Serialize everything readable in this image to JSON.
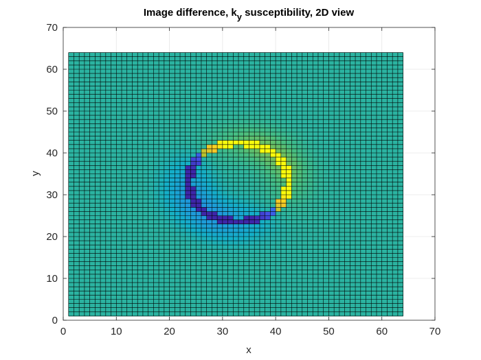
{
  "chart_data": {
    "type": "heatmap",
    "title": {
      "prefix": "Image difference, k",
      "subscript": "y",
      "suffix": " susceptibility, 2D view"
    },
    "xlabel": "x",
    "ylabel": "y",
    "xlim": [
      0,
      70
    ],
    "ylim": [
      0,
      70
    ],
    "xticks": [
      "0",
      "10",
      "20",
      "30",
      "40",
      "50",
      "60",
      "70"
    ],
    "yticks": [
      "0",
      "10",
      "20",
      "30",
      "40",
      "50",
      "60",
      "70"
    ],
    "grid": true,
    "colormap": "parula",
    "color_range": [
      -1,
      1
    ],
    "grid_x_range": [
      1,
      64
    ],
    "grid_y_range": [
      1,
      64
    ],
    "background_value": 0.0,
    "field": {
      "description": "dipole-like difference pattern around a ring",
      "ring_center": [
        33,
        33
      ],
      "ring_radius": 9.5,
      "ring_top_value": 1.0,
      "ring_bottom_value": -1.0,
      "halo_top_value": 0.35,
      "halo_bottom_value": -0.3
    },
    "colors": {
      "background_cell": "#2bb3a1",
      "positive_extreme": "#f9fb0e",
      "negative_extreme": "#3e26a8",
      "cell_edge": "#000000",
      "axis": "#262626",
      "grid": "#e6e6e6"
    }
  }
}
